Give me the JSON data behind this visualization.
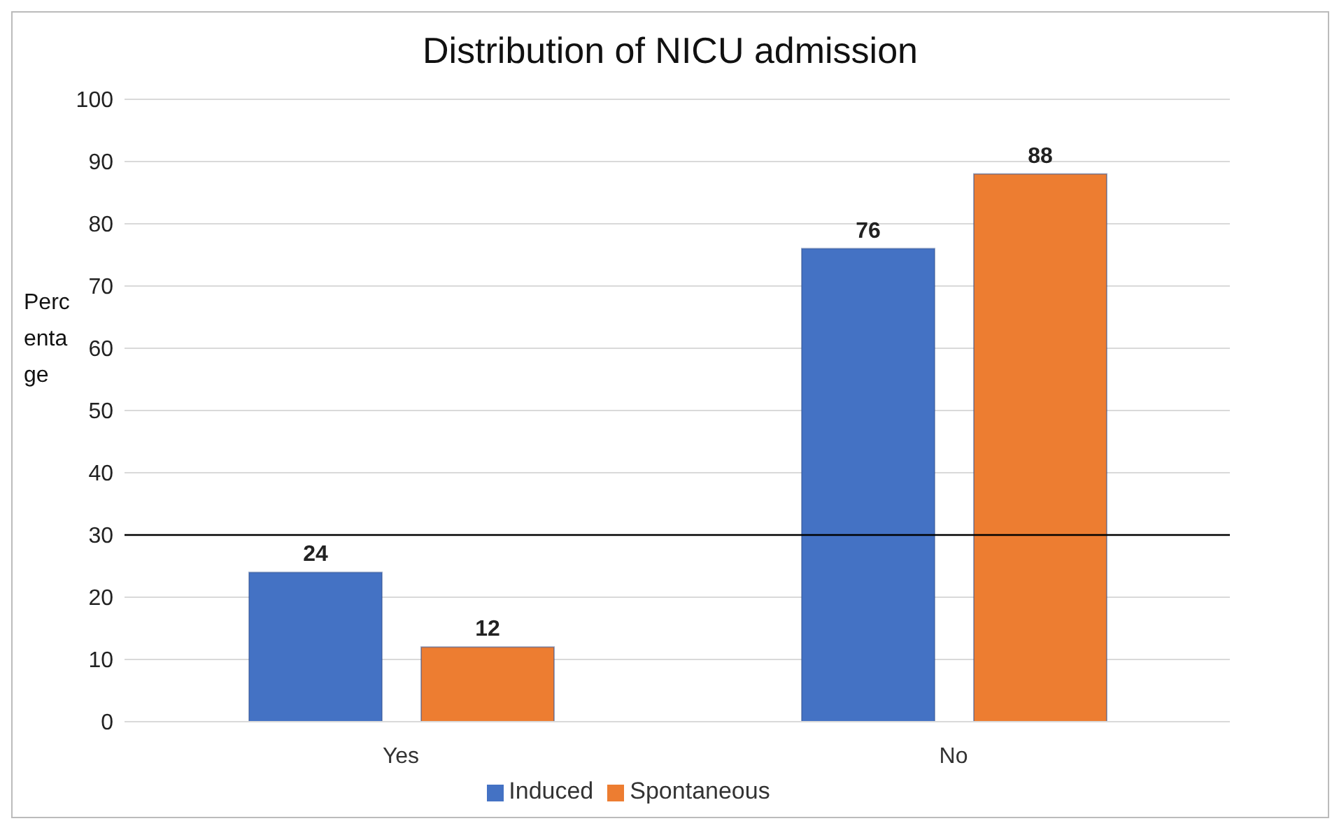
{
  "chart_data": {
    "type": "bar",
    "title": "Distribution of NICU admission",
    "ylabel": "Percentage",
    "categories": [
      "Yes",
      "No"
    ],
    "series": [
      {
        "name": "Induced",
        "color": "#4472c4",
        "values": [
          24,
          76
        ]
      },
      {
        "name": "Spontaneous",
        "color": "#ed7d31",
        "values": [
          12,
          88
        ]
      }
    ],
    "ylim": [
      0,
      100
    ],
    "yticks": [
      0,
      10,
      20,
      30,
      40,
      50,
      60,
      70,
      80,
      90,
      100
    ],
    "grid": "y",
    "legend": "bottom",
    "data_labels": true,
    "ref_lines": [
      {
        "axis": "y",
        "value": 30,
        "color": "#000000"
      }
    ]
  }
}
